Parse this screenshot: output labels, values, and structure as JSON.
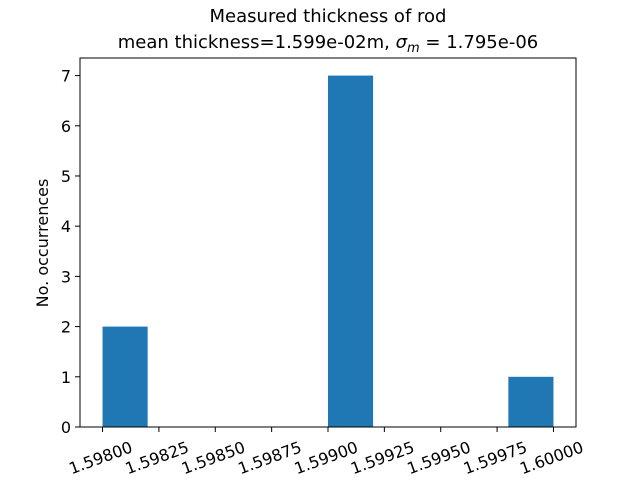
{
  "chart_data": {
    "type": "bar",
    "title_line1": "Measured thickness of rod",
    "title_line2_prefix": "mean thickness=1.599e-02m, ",
    "title_sigma_symbol": "σ",
    "title_sigma_sub": "m",
    "title_line2_suffix": " = 1.795e-06",
    "ylabel": "No. occurrences",
    "xlabel": "",
    "bar_color": "#1f77b4",
    "bins": [
      {
        "left": 1.598,
        "right": 1.5982,
        "count": 2
      },
      {
        "left": 1.5982,
        "right": 1.5984,
        "count": 0
      },
      {
        "left": 1.5984,
        "right": 1.5986,
        "count": 0
      },
      {
        "left": 1.5986,
        "right": 1.5988,
        "count": 0
      },
      {
        "left": 1.5988,
        "right": 1.599,
        "count": 0
      },
      {
        "left": 1.599,
        "right": 1.5992,
        "count": 7
      },
      {
        "left": 1.5992,
        "right": 1.5994,
        "count": 0
      },
      {
        "left": 1.5994,
        "right": 1.5996,
        "count": 0
      },
      {
        "left": 1.5996,
        "right": 1.5998,
        "count": 0
      },
      {
        "left": 1.5998,
        "right": 1.6,
        "count": 1
      }
    ],
    "xlim": [
      1.5979,
      1.6001
    ],
    "ylim": [
      0,
      7.35
    ],
    "xticks": [
      1.598,
      1.59825,
      1.5985,
      1.59875,
      1.599,
      1.59925,
      1.5995,
      1.59975,
      1.6
    ],
    "xtick_labels": [
      "1.59800",
      "1.59825",
      "1.59850",
      "1.59875",
      "1.59900",
      "1.59925",
      "1.59950",
      "1.59975",
      "1.60000"
    ],
    "yticks": [
      0,
      1,
      2,
      3,
      4,
      5,
      6,
      7
    ],
    "ytick_labels": [
      "0",
      "1",
      "2",
      "3",
      "4",
      "5",
      "6",
      "7"
    ],
    "grid": false,
    "legend": "none"
  }
}
